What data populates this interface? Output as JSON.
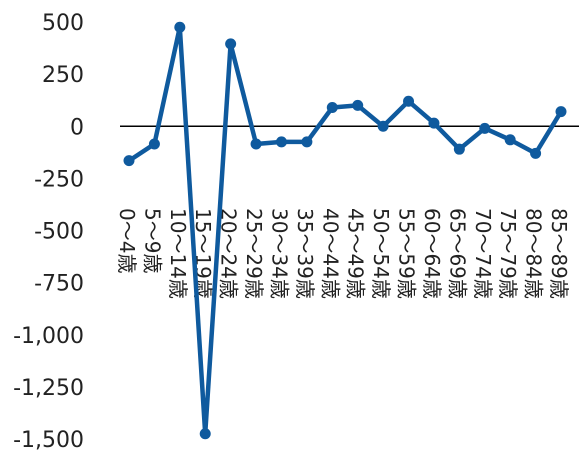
{
  "chart_data": {
    "type": "line",
    "title": "",
    "xlabel": "",
    "ylabel": "",
    "ylim": [
      -1500,
      500
    ],
    "yticks": [
      "500",
      "250",
      "0",
      "-250",
      "-500",
      "-750",
      "-1,000",
      "-1,250",
      "-1,500"
    ],
    "categories": [
      "0～4歳",
      "5～9歳",
      "10～14歳",
      "15～19歳",
      "20～24歳",
      "25～29歳",
      "30～34歳",
      "35～39歳",
      "40～44歳",
      "45～49歳",
      "50～54歳",
      "55～59歳",
      "60～64歳",
      "65～69歳",
      "70～74歳",
      "75～79歳",
      "80～84歳",
      "85～89歳"
    ],
    "series": [
      {
        "values": [
          -165,
          -85,
          475,
          -1475,
          395,
          -85,
          -75,
          -75,
          90,
          100,
          0,
          120,
          15,
          -110,
          -10,
          -65,
          -130,
          70
        ],
        "color": "#0F5A9E"
      }
    ],
    "zero_line_color": "#000000",
    "grid": false,
    "legend": "none"
  }
}
